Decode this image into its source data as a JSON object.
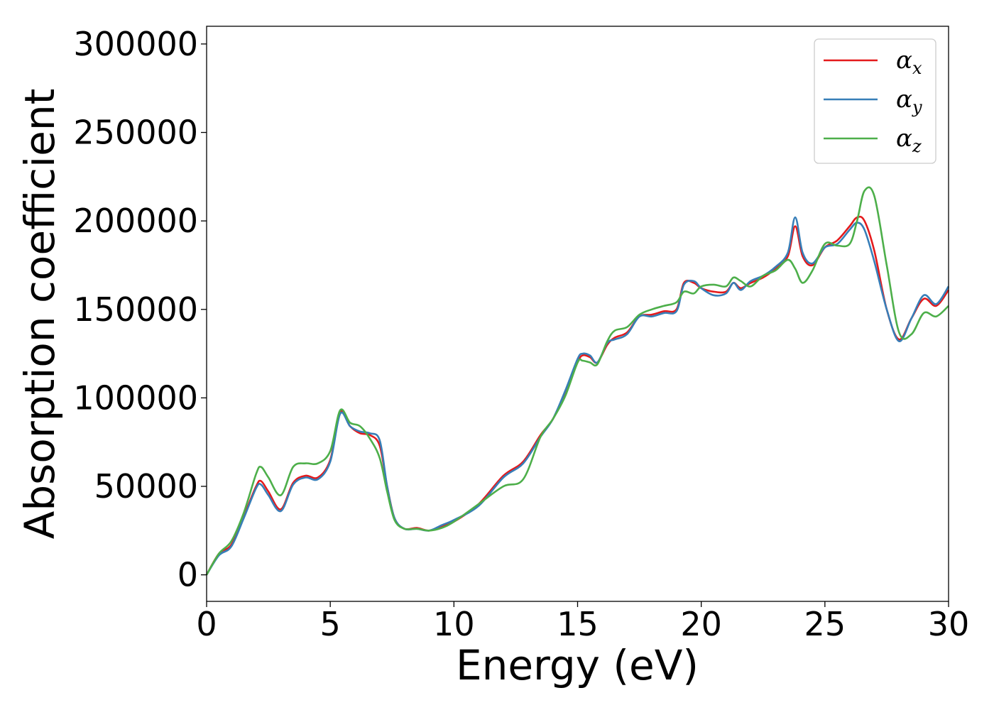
{
  "chart_data": {
    "type": "line",
    "xlabel": "Energy (eV)",
    "ylabel": "Absorption coefficient",
    "xlim": [
      0,
      30
    ],
    "ylim": [
      -15000,
      310000
    ],
    "xticks": [
      0,
      5,
      10,
      15,
      20,
      25,
      30
    ],
    "yticks": [
      0,
      50000,
      100000,
      150000,
      200000,
      250000,
      300000
    ],
    "grid": false,
    "legend_position": "top-right",
    "x": [
      0,
      0.5,
      1,
      1.5,
      2,
      2.2,
      2.5,
      3,
      3.5,
      4,
      4.5,
      5,
      5.4,
      5.8,
      6.2,
      6.6,
      7,
      7.3,
      7.6,
      8,
      8.5,
      9,
      9.5,
      10,
      11,
      12,
      12.8,
      13.5,
      14,
      14.5,
      15,
      15.2,
      15.5,
      15.8,
      16.2,
      16.5,
      17,
      17.5,
      18,
      18.5,
      19,
      19.3,
      19.7,
      20,
      20.5,
      21,
      21.3,
      21.6,
      22,
      22.5,
      23,
      23.5,
      23.8,
      24.1,
      24.5,
      25,
      25.5,
      26,
      26.3,
      26.6,
      27,
      27.5,
      28,
      28.5,
      29,
      29.5,
      30
    ],
    "series": [
      {
        "name": "α",
        "subscript": "x",
        "color": "#e41a1c",
        "values": [
          0,
          12000,
          17000,
          33000,
          50000,
          53000,
          47000,
          37000,
          52000,
          56000,
          55000,
          65000,
          92000,
          84000,
          80000,
          79000,
          73000,
          50000,
          32000,
          26000,
          26500,
          25000,
          27500,
          30000,
          40000,
          56000,
          64000,
          79000,
          88000,
          103000,
          120000,
          124000,
          123000,
          120000,
          130000,
          134000,
          137000,
          146000,
          147000,
          149000,
          150000,
          165000,
          165000,
          162000,
          160000,
          160000,
          165000,
          162000,
          165000,
          168000,
          173000,
          180000,
          197000,
          180000,
          175000,
          185000,
          189000,
          197000,
          202000,
          200000,
          183000,
          150000,
          133000,
          145000,
          156000,
          152000,
          161000
        ]
      },
      {
        "name": "α",
        "subscript": "y",
        "color": "#377eb8",
        "values": [
          0,
          11000,
          16000,
          32000,
          49000,
          51000,
          45000,
          36000,
          51000,
          55000,
          54000,
          64000,
          91000,
          84000,
          81000,
          80000,
          76000,
          50000,
          32000,
          26000,
          26000,
          25000,
          28000,
          31000,
          39000,
          55000,
          63000,
          78000,
          88000,
          104000,
          122000,
          125000,
          124000,
          120000,
          131000,
          133000,
          136000,
          146000,
          146000,
          148000,
          149000,
          164000,
          166000,
          162000,
          158000,
          159000,
          165000,
          161000,
          166000,
          169000,
          174000,
          182000,
          202000,
          182000,
          176000,
          185000,
          187000,
          195000,
          199000,
          195000,
          177000,
          150000,
          132000,
          145000,
          158000,
          153000,
          163000
        ]
      },
      {
        "name": "α",
        "subscript": "z",
        "color": "#4daf4a",
        "values": [
          0,
          12000,
          19000,
          35000,
          57000,
          61000,
          55000,
          45000,
          61000,
          63000,
          63000,
          70000,
          93000,
          86000,
          84000,
          77000,
          66000,
          47000,
          31000,
          26000,
          26000,
          25000,
          26500,
          30000,
          40000,
          50000,
          54000,
          78000,
          88000,
          101000,
          120000,
          121000,
          120000,
          119000,
          132000,
          138000,
          140000,
          147000,
          150000,
          152000,
          154000,
          160000,
          159000,
          163000,
          164000,
          163000,
          168000,
          166000,
          163000,
          169000,
          172000,
          178000,
          173000,
          165000,
          172000,
          187000,
          186000,
          187000,
          200000,
          217000,
          214000,
          175000,
          137000,
          136000,
          148000,
          146000,
          152000
        ]
      }
    ]
  }
}
